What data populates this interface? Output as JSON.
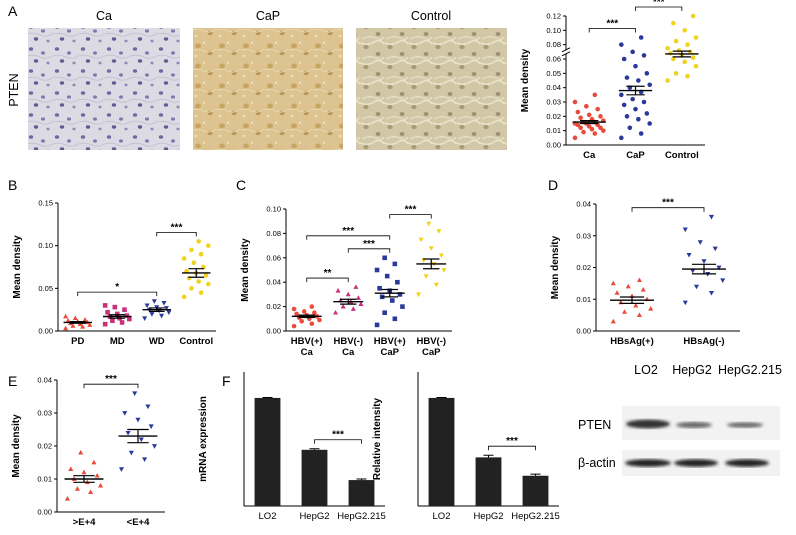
{
  "figure": {
    "panel_labels": [
      "A",
      "B",
      "C",
      "D",
      "E",
      "F"
    ],
    "micrographs": {
      "row_label": "PTEN",
      "titles": [
        "Ca",
        "CaP",
        "Control"
      ]
    },
    "blot": {
      "lanes": [
        "LO2",
        "HepG2",
        "HepG2.215"
      ],
      "rows": [
        "PTEN",
        "β-actin"
      ]
    }
  },
  "chart_data": [
    {
      "type": "dotplot",
      "ylabel": "Mean density",
      "axis_break": true,
      "ylim": [
        0,
        0.12
      ],
      "yticks": [
        {
          "value": 0,
          "label": "0.00"
        },
        {
          "value": 0.01,
          "label": "0.01"
        },
        {
          "value": 0.02,
          "label": "0.02"
        },
        {
          "value": 0.03,
          "label": "0.03"
        },
        {
          "value": 0.04,
          "label": "0.04"
        },
        {
          "value": 0.05,
          "label": "0.05"
        },
        {
          "value": 0.06,
          "label": "0.06"
        },
        {
          "value": 0.08,
          "label": "0.08"
        },
        {
          "value": 0.1,
          "label": "0.10"
        },
        {
          "value": 0.12,
          "label": "0.12"
        }
      ],
      "categories": [
        "Ca",
        "CaP",
        "Control"
      ],
      "groups": [
        {
          "color": "#ea4a3c",
          "marker": "circle",
          "mean": 0.016,
          "sem": 0.001,
          "values": [
            0.005,
            0.008,
            0.009,
            0.01,
            0.011,
            0.012,
            0.012,
            0.013,
            0.014,
            0.014,
            0.015,
            0.015,
            0.016,
            0.016,
            0.017,
            0.018,
            0.019,
            0.02,
            0.021,
            0.023,
            0.025,
            0.027,
            0.03,
            0.035
          ]
        },
        {
          "color": "#2b3a9a",
          "marker": "circle",
          "mean": 0.038,
          "sem": 0.003,
          "values": [
            0.005,
            0.008,
            0.012,
            0.015,
            0.018,
            0.02,
            0.022,
            0.025,
            0.028,
            0.03,
            0.032,
            0.035,
            0.037,
            0.04,
            0.042,
            0.045,
            0.047,
            0.05,
            0.055,
            0.06,
            0.065,
            0.07,
            0.08,
            0.09
          ]
        },
        {
          "color": "#f2d21b",
          "marker": "circle",
          "mean": 0.067,
          "sem": 0.004,
          "values": [
            0.045,
            0.048,
            0.05,
            0.055,
            0.058,
            0.06,
            0.062,
            0.065,
            0.068,
            0.07,
            0.072,
            0.075,
            0.08,
            0.085,
            0.09,
            0.1,
            0.11,
            0.12
          ]
        }
      ],
      "brackets": [
        {
          "between": [
            0,
            1
          ],
          "label": "***"
        },
        {
          "between": [
            1,
            2
          ],
          "label": "***"
        }
      ]
    },
    {
      "type": "dotplot",
      "ylabel": "Mean density",
      "ylim": [
        0,
        0.15
      ],
      "yticks": [
        {
          "value": 0,
          "label": "0.00"
        },
        {
          "value": 0.05,
          "label": "0.05"
        },
        {
          "value": 0.1,
          "label": "0.10"
        },
        {
          "value": 0.15,
          "label": "0.15"
        }
      ],
      "categories": [
        "PD",
        "MD",
        "WD",
        "Control"
      ],
      "groups": [
        {
          "color": "#ea4a3c",
          "marker": "triangle-up",
          "mean": 0.01,
          "sem": 0.001,
          "values": [
            0.003,
            0.005,
            0.006,
            0.007,
            0.008,
            0.009,
            0.01,
            0.011,
            0.012,
            0.013,
            0.015,
            0.017
          ]
        },
        {
          "color": "#c8307a",
          "marker": "square",
          "mean": 0.017,
          "sem": 0.002,
          "values": [
            0.008,
            0.01,
            0.012,
            0.014,
            0.015,
            0.017,
            0.018,
            0.02,
            0.022,
            0.025,
            0.028,
            0.03
          ]
        },
        {
          "color": "#2b3a9a",
          "marker": "triangle-down",
          "mean": 0.025,
          "sem": 0.002,
          "values": [
            0.015,
            0.018,
            0.02,
            0.022,
            0.024,
            0.025,
            0.027,
            0.028,
            0.03,
            0.033,
            0.035
          ]
        },
        {
          "color": "#f2d21b",
          "marker": "circle",
          "mean": 0.068,
          "sem": 0.005,
          "values": [
            0.04,
            0.045,
            0.05,
            0.055,
            0.058,
            0.062,
            0.065,
            0.068,
            0.07,
            0.075,
            0.08,
            0.085,
            0.09,
            0.095,
            0.1,
            0.105
          ]
        }
      ],
      "brackets": [
        {
          "between": [
            0,
            2
          ],
          "label": "*"
        },
        {
          "between": [
            2,
            3
          ],
          "label": "***"
        }
      ]
    },
    {
      "type": "dotplot",
      "ylabel": "Mean density",
      "ylim": [
        0,
        0.1
      ],
      "yticks": [
        {
          "value": 0,
          "label": "0.00"
        },
        {
          "value": 0.02,
          "label": "0.02"
        },
        {
          "value": 0.04,
          "label": "0.04"
        },
        {
          "value": 0.06,
          "label": "0.06"
        },
        {
          "value": 0.08,
          "label": "0.08"
        },
        {
          "value": 0.1,
          "label": "0.10"
        }
      ],
      "categories": [
        [
          "HBV(+)",
          "Ca"
        ],
        [
          "HBV(-)",
          "Ca"
        ],
        [
          "HBV(+)",
          "CaP"
        ],
        [
          "HBV(-)",
          "CaP"
        ]
      ],
      "groups": [
        {
          "color": "#ea4a3c",
          "marker": "circle",
          "mean": 0.012,
          "sem": 0.001,
          "values": [
            0.004,
            0.006,
            0.008,
            0.009,
            0.01,
            0.011,
            0.012,
            0.013,
            0.014,
            0.015,
            0.016,
            0.018,
            0.02
          ]
        },
        {
          "color": "#c8307a",
          "marker": "triangle-up",
          "mean": 0.024,
          "sem": 0.002,
          "values": [
            0.015,
            0.018,
            0.02,
            0.022,
            0.024,
            0.025,
            0.027,
            0.03,
            0.033,
            0.036
          ]
        },
        {
          "color": "#2b3a9a",
          "marker": "square",
          "mean": 0.031,
          "sem": 0.003,
          "values": [
            0.005,
            0.01,
            0.015,
            0.02,
            0.025,
            0.028,
            0.03,
            0.033,
            0.035,
            0.04,
            0.045,
            0.05,
            0.055,
            0.06
          ]
        },
        {
          "color": "#f2d21b",
          "marker": "triangle-down",
          "mean": 0.055,
          "sem": 0.004,
          "values": [
            0.03,
            0.038,
            0.045,
            0.05,
            0.055,
            0.058,
            0.062,
            0.068,
            0.075,
            0.082,
            0.088
          ]
        }
      ],
      "brackets": [
        {
          "between": [
            0,
            1
          ],
          "label": "**"
        },
        {
          "between": [
            1,
            2
          ],
          "label": "***"
        },
        {
          "between": [
            0,
            2
          ],
          "label": "***"
        },
        {
          "between": [
            2,
            3
          ],
          "label": "***"
        }
      ]
    },
    {
      "type": "dotplot",
      "ylabel": "Mean density",
      "ylim": [
        0,
        0.04
      ],
      "yticks": [
        {
          "value": 0,
          "label": "0.00"
        },
        {
          "value": 0.01,
          "label": "0.01"
        },
        {
          "value": 0.02,
          "label": "0.02"
        },
        {
          "value": 0.03,
          "label": "0.03"
        },
        {
          "value": 0.04,
          "label": "0.04"
        }
      ],
      "categories": [
        "HBsAg(+)",
        "HBsAg(-)"
      ],
      "groups": [
        {
          "color": "#ea4a3c",
          "marker": "triangle-up",
          "mean": 0.0097,
          "sem": 0.001,
          "values": [
            0.003,
            0.005,
            0.006,
            0.007,
            0.008,
            0.009,
            0.01,
            0.011,
            0.012,
            0.013,
            0.014,
            0.015,
            0.016
          ]
        },
        {
          "color": "#2b3a9a",
          "marker": "triangle-down",
          "mean": 0.0195,
          "sem": 0.0015,
          "values": [
            0.009,
            0.012,
            0.014,
            0.016,
            0.018,
            0.019,
            0.02,
            0.022,
            0.024,
            0.026,
            0.028,
            0.032,
            0.036
          ]
        }
      ],
      "brackets": [
        {
          "between": [
            0,
            1
          ],
          "label": "***"
        }
      ]
    },
    {
      "type": "dotplot",
      "ylabel": "Mean density",
      "ylim": [
        0,
        0.04
      ],
      "yticks": [
        {
          "value": 0,
          "label": "0.00"
        },
        {
          "value": 0.01,
          "label": "0.01"
        },
        {
          "value": 0.02,
          "label": "0.02"
        },
        {
          "value": 0.03,
          "label": "0.03"
        },
        {
          "value": 0.04,
          "label": "0.04"
        }
      ],
      "categories": [
        ">E+4",
        "<E+4"
      ],
      "groups": [
        {
          "color": "#ea4a3c",
          "marker": "triangle-up",
          "mean": 0.01,
          "sem": 0.001,
          "values": [
            0.004,
            0.006,
            0.007,
            0.008,
            0.009,
            0.01,
            0.011,
            0.012,
            0.013,
            0.015,
            0.018
          ]
        },
        {
          "color": "#2b3a9a",
          "marker": "triangle-down",
          "mean": 0.023,
          "sem": 0.002,
          "values": [
            0.013,
            0.016,
            0.018,
            0.02,
            0.022,
            0.024,
            0.026,
            0.028,
            0.03,
            0.032,
            0.036
          ]
        }
      ],
      "brackets": [
        {
          "between": [
            0,
            1
          ],
          "label": "***"
        }
      ]
    },
    {
      "type": "bar",
      "ylabel": "mRNA expression",
      "ylim": [
        0,
        1.24
      ],
      "color": "#222222",
      "categories": [
        "LO2",
        "HepG2",
        "HepG2.215"
      ],
      "values": [
        1,
        0.52,
        0.24
      ],
      "errors": [
        0.004,
        0.01,
        0.01
      ],
      "brackets": [
        {
          "between": [
            1,
            2
          ],
          "label": "***"
        }
      ]
    },
    {
      "type": "bar",
      "ylabel": "Relative intensity",
      "ylim": [
        0,
        1.24
      ],
      "color": "#222222",
      "categories": [
        "LO2",
        "HepG2",
        "HepG2.215"
      ],
      "values": [
        1,
        0.45,
        0.28
      ],
      "errors": [
        0.004,
        0.02,
        0.015
      ],
      "brackets": [
        {
          "between": [
            1,
            2
          ],
          "label": "***"
        }
      ]
    }
  ]
}
